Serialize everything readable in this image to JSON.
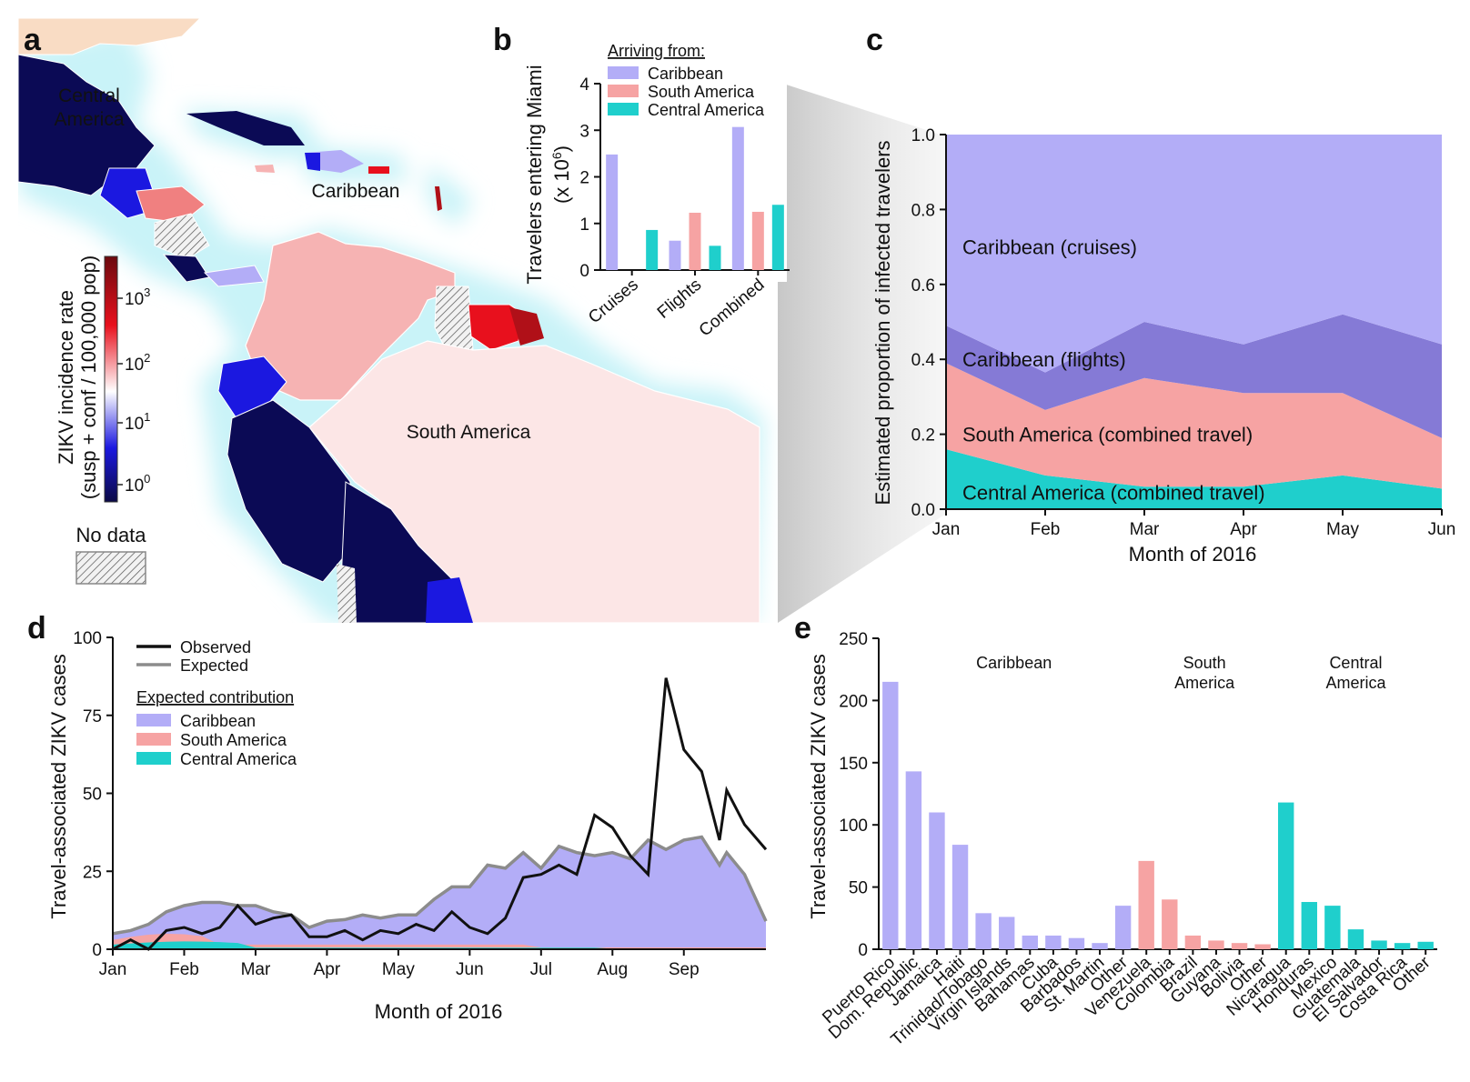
{
  "colors": {
    "caribbean": "#b3adf7",
    "caribbean_flights": "#857ad6",
    "south_america": "#f6a3a3",
    "central_america": "#1fcfcc",
    "observed": "#111111",
    "expected": "#8c8c8c",
    "sea_glow": "#c9f3f8",
    "land_high": "#0b0a55",
    "land_pink": "#f6b3b3",
    "land_light": "#fce6e6",
    "land_red": "#e8101d",
    "land_blue": "#1b18e0",
    "land_tan": "#f9dcc4"
  },
  "panel_a": {
    "letter": "a",
    "labels": {
      "central_america": [
        "Central",
        "America"
      ],
      "caribbean": "Caribbean",
      "south_america": "South America"
    },
    "colorbar": {
      "title_line1": "ZIKV incidence rate",
      "title_line2": "(susp + conf / 100,000 pop)",
      "ticks": [
        {
          "base": "10",
          "exp": "3"
        },
        {
          "base": "10",
          "exp": "2"
        },
        {
          "base": "10",
          "exp": "1"
        },
        {
          "base": "10",
          "exp": "0"
        }
      ]
    },
    "no_data_label": "No data"
  },
  "chart_data": [
    {
      "panel": "b",
      "type": "bar",
      "ylabel_line1": "Travelers entering Miami",
      "ylabel_line2": "(x 10",
      "ylabel_exp": "6",
      "ylabel_close": ")",
      "ylim": [
        0,
        4
      ],
      "yticks": [
        "0",
        "1",
        "2",
        "3",
        "4"
      ],
      "categories": [
        "Cruises",
        "Flights",
        "Combined"
      ],
      "legend_title": "Arriving from:",
      "series": [
        {
          "name": "Caribbean",
          "values": [
            2.48,
            0.63,
            3.07
          ]
        },
        {
          "name": "South America",
          "values": [
            0.0,
            1.23,
            1.25
          ]
        },
        {
          "name": "Central America",
          "values": [
            0.86,
            0.52,
            1.4
          ]
        }
      ]
    },
    {
      "panel": "c",
      "type": "area",
      "xlabel": "Month of 2016",
      "ylabel": "Estimated proportion of infected travelers",
      "x": [
        "Jan",
        "Feb",
        "Mar",
        "Apr",
        "May",
        "Jun"
      ],
      "ylim": [
        0,
        1
      ],
      "yticks": [
        "0.0",
        "0.2",
        "0.4",
        "0.6",
        "0.8",
        "1.0"
      ],
      "stacked_series": [
        {
          "name": "Central America (combined travel)",
          "values": [
            0.16,
            0.09,
            0.06,
            0.06,
            0.09,
            0.055
          ]
        },
        {
          "name": "South America (combined travel)",
          "values": [
            0.23,
            0.175,
            0.29,
            0.25,
            0.22,
            0.135
          ]
        },
        {
          "name": "Caribbean (flights)",
          "values": [
            0.1,
            0.1,
            0.15,
            0.13,
            0.21,
            0.25
          ]
        },
        {
          "name": "Caribbean (cruises)",
          "values": [
            0.51,
            0.635,
            0.5,
            0.56,
            0.48,
            0.56
          ]
        }
      ]
    },
    {
      "panel": "d",
      "type": "line",
      "xlabel": "Month of 2016",
      "ylabel": "Travel-associated ZIKV cases",
      "ylim": [
        0,
        100
      ],
      "yticks": [
        "0",
        "25",
        "50",
        "75",
        "100"
      ],
      "month_ticks": [
        "Jan",
        "Feb",
        "Mar",
        "Apr",
        "May",
        "Jun",
        "Jul",
        "Aug",
        "Sep"
      ],
      "x": [
        0,
        0.25,
        0.5,
        0.75,
        1,
        1.25,
        1.5,
        1.75,
        2,
        2.25,
        2.5,
        2.75,
        3,
        3.25,
        3.5,
        3.75,
        4,
        4.25,
        4.5,
        4.75,
        5,
        5.25,
        5.5,
        5.75,
        6,
        6.25,
        6.5,
        6.75,
        7,
        7.25,
        7.5,
        7.75,
        8,
        8.25,
        8.5,
        8.6
      ],
      "series": [
        {
          "name": "Observed",
          "values": [
            0,
            3,
            0,
            6,
            7,
            5,
            7,
            14,
            8,
            10,
            11,
            4,
            4,
            6,
            3,
            6,
            5,
            8,
            6,
            12,
            7,
            5,
            10,
            23,
            24,
            27,
            24,
            43,
            39,
            30,
            24,
            87,
            64,
            57,
            35,
            51
          ]
        },
        {
          "name": "Expected",
          "values": [
            5,
            6,
            8,
            12,
            14,
            15,
            15,
            14,
            14,
            12,
            11,
            7,
            9,
            9.5,
            11,
            10,
            11,
            11,
            16,
            20,
            20,
            27,
            26,
            31,
            26,
            33,
            31,
            30,
            31,
            29,
            35,
            32,
            35,
            36,
            27,
            31
          ]
        }
      ],
      "observed_tail": [
        40,
        32
      ],
      "expected_tail": [
        24,
        9
      ],
      "tail_x": [
        8.85,
        9.15
      ],
      "legend_expected_contribution": "Expected contribution",
      "contribution_legend": [
        "Caribbean",
        "South America",
        "Central America"
      ]
    },
    {
      "panel": "e",
      "type": "bar",
      "ylabel": "Travel-associated ZIKV cases",
      "ylim": [
        0,
        250
      ],
      "yticks": [
        "0",
        "50",
        "100",
        "150",
        "200",
        "250"
      ],
      "groups": [
        {
          "name": "Caribbean",
          "label_lines": [
            "Caribbean"
          ],
          "categories": [
            "Puerto Rico",
            "Dom. Republic",
            "Jamaica",
            "Haiti",
            "Trinidad/Tobago",
            "Virgin Islands",
            "Bahamas",
            "Cuba",
            "Barbados",
            "St. Martin",
            "Other"
          ],
          "values": [
            215,
            143,
            110,
            84,
            29,
            26,
            11,
            11,
            9,
            5,
            35
          ]
        },
        {
          "name": "South America",
          "label_lines": [
            "South",
            "America"
          ],
          "categories": [
            "Venezuela",
            "Colombia",
            "Brazil",
            "Guyana",
            "Bolivia",
            "Other"
          ],
          "values": [
            71,
            40,
            11,
            7,
            5,
            4
          ]
        },
        {
          "name": "Central America",
          "label_lines": [
            "Central",
            "America"
          ],
          "categories": [
            "Nicaragua",
            "Honduras",
            "Mexico",
            "Guatemala",
            "El Salvador",
            "Costa Rica",
            "Other"
          ],
          "values": [
            118,
            38,
            35,
            16,
            7,
            5,
            6
          ]
        }
      ]
    }
  ]
}
